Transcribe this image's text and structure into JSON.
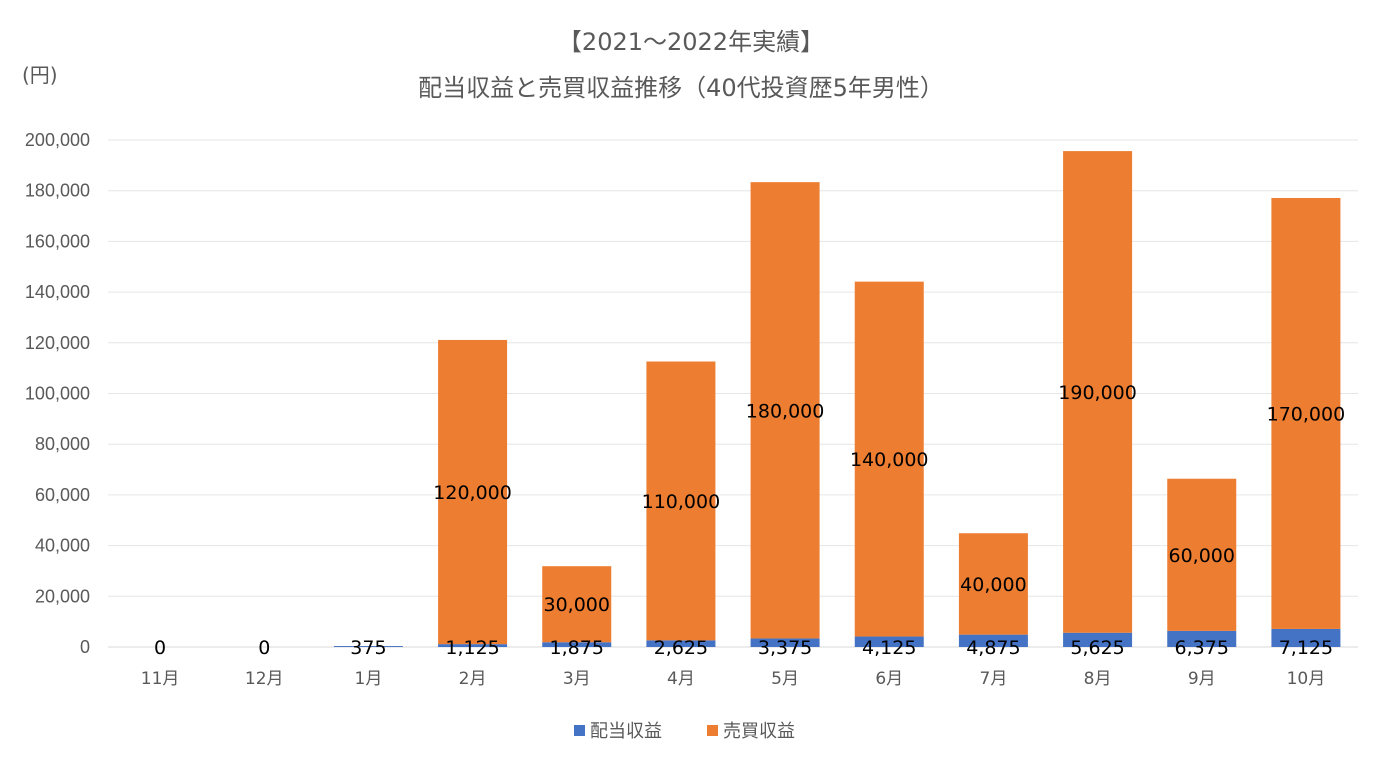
{
  "chart_data": {
    "type": "bar",
    "stacked": true,
    "title": "【2021～2022年実績】",
    "subtitle": "配当収益と売買収益推移（40代投資歴5年男性）",
    "ylabel": "(円)",
    "xlabel": "",
    "ylim": [
      0,
      200000
    ],
    "ytick_step": 20000,
    "ytick_labels": [
      "0",
      "20,000",
      "40,000",
      "60,000",
      "80,000",
      "100,000",
      "120,000",
      "140,000",
      "160,000",
      "180,000",
      "200,000"
    ],
    "grid": true,
    "legend_position": "bottom-center",
    "categories": [
      "11月",
      "12月",
      "1月",
      "2月",
      "3月",
      "4月",
      "5月",
      "6月",
      "7月",
      "8月",
      "9月",
      "10月"
    ],
    "series": [
      {
        "name": "配当収益",
        "color": "#4472c4",
        "values": [
          0,
          0,
          375,
          1125,
          1875,
          2625,
          3375,
          4125,
          4875,
          5625,
          6375,
          7125
        ],
        "labels": [
          "0",
          "0",
          "375",
          "1,125",
          "1,875",
          "2,625",
          "3,375",
          "4,125",
          "4,875",
          "5,625",
          "6,375",
          "7,125"
        ]
      },
      {
        "name": "売買収益",
        "color": "#ed7d31",
        "values": [
          0,
          0,
          0,
          120000,
          30000,
          110000,
          180000,
          140000,
          40000,
          190000,
          60000,
          170000
        ],
        "labels": [
          "",
          "",
          "",
          "120,000",
          "30,000",
          "110,000",
          "180,000",
          "140,000",
          "40,000",
          "190,000",
          "60,000",
          "170,000"
        ]
      }
    ]
  }
}
